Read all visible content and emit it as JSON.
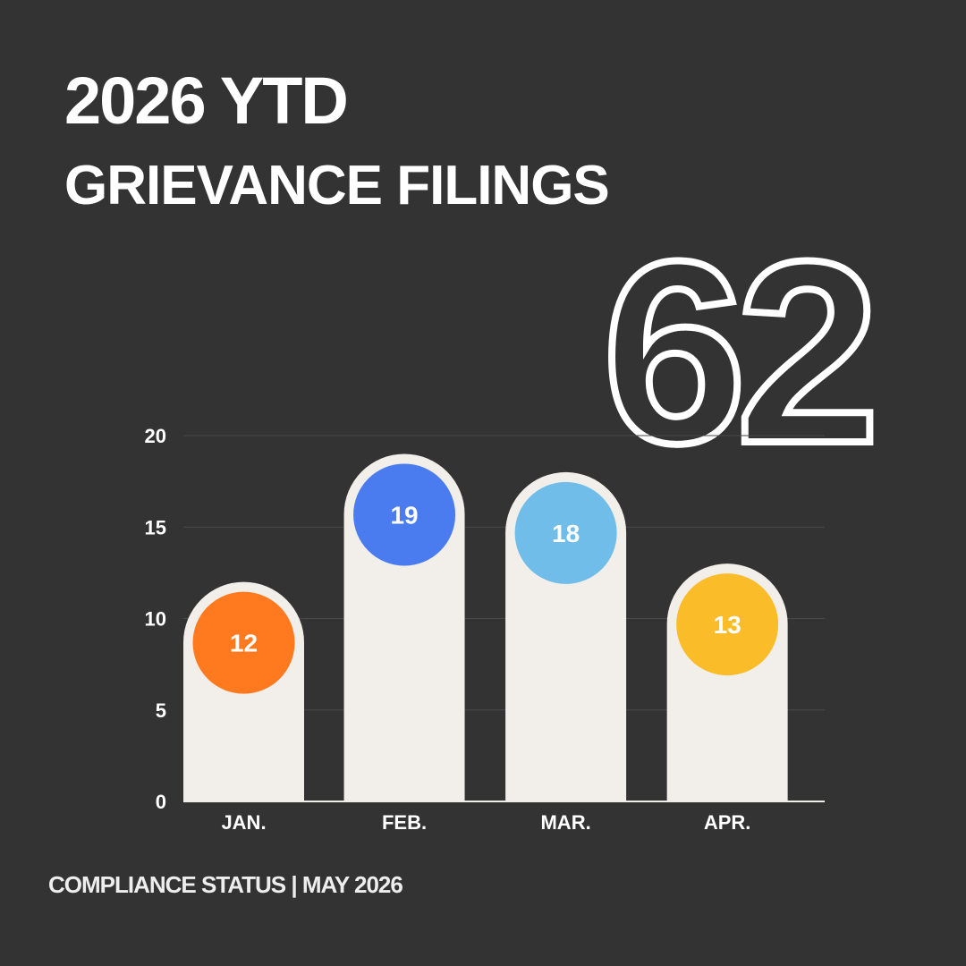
{
  "chart_data": {
    "type": "bar",
    "title": "2026 YTD",
    "subtitle": "GRIEVANCE FILINGS",
    "total": 62,
    "footer": "COMPLIANCE STATUS | MAY 2026",
    "categories": [
      "JAN.",
      "FEB.",
      "MAR.",
      "APR."
    ],
    "values": [
      12,
      19,
      18,
      13
    ],
    "colors": [
      "#ff7a1f",
      "#4a7cf0",
      "#6fbde8",
      "#fbbc29"
    ],
    "bar_color": "#f2efea",
    "ylim": [
      0,
      20
    ],
    "yticks": [
      0,
      5,
      10,
      15,
      20
    ],
    "grid": true
  }
}
